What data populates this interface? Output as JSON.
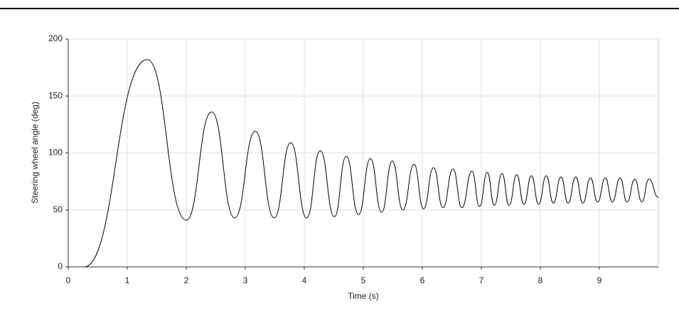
{
  "chart_data": {
    "type": "line",
    "x_label": "Time (s)",
    "y_label": "Steering wheel angle (deg)",
    "x": [
      0,
      0.27,
      1.34,
      2.0,
      2.43,
      2.82,
      3.17,
      3.49,
      3.77,
      4.04,
      4.27,
      4.51,
      4.71,
      4.92,
      5.12,
      5.31,
      5.49,
      5.67,
      5.86,
      6.02,
      6.19,
      6.35,
      6.52,
      6.67,
      6.84,
      6.97,
      7.1,
      7.22,
      7.35,
      7.47,
      7.6,
      7.72,
      7.85,
      7.97,
      8.1,
      8.22,
      8.35,
      8.47,
      8.6,
      8.72,
      8.85,
      8.97,
      9.1,
      9.22,
      9.35,
      9.47,
      9.6,
      9.72,
      9.84,
      10.0
    ],
    "series": [
      {
        "color": "#000000",
        "values": [
          0,
          0,
          182,
          41,
          136,
          43,
          119,
          43,
          109,
          43,
          102,
          44,
          97,
          46,
          95,
          48,
          93,
          50,
          90,
          51,
          87,
          52,
          86,
          52,
          84,
          53,
          83,
          54,
          82,
          54,
          81,
          55,
          80,
          55,
          80,
          56,
          79,
          56,
          79,
          56,
          78,
          57,
          78,
          57,
          78,
          57,
          77,
          57,
          77,
          61
        ]
      }
    ],
    "xlim": [
      0,
      10
    ],
    "xticks": [
      0,
      1,
      2,
      3,
      4,
      5,
      6,
      7,
      8,
      9
    ],
    "ylim": [
      0,
      200
    ],
    "yticks": [
      0,
      50,
      100,
      150,
      200
    ],
    "grid": true
  }
}
